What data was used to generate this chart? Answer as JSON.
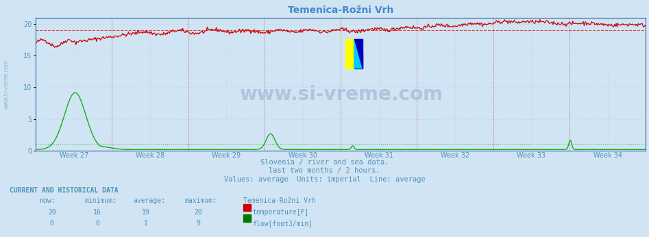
{
  "title": "Temenica-Rožni Vrh",
  "background_color": "#d0e4f4",
  "plot_bg_color": "#d0e4f4",
  "grid_color": "#b8ccdc",
  "text_color": "#5090b8",
  "title_color": "#4488cc",
  "weeks": [
    "Week 27",
    "Week 28",
    "Week 29",
    "Week 30",
    "Week 31",
    "Week 32",
    "Week 33",
    "Week 34"
  ],
  "ylim": [
    0,
    21
  ],
  "yticks": [
    0,
    5,
    10,
    15,
    20
  ],
  "temp_color": "#cc0000",
  "flow_color": "#00aa00",
  "temp_avg_color": "#dd4444",
  "flow_avg_color": "#44bb44",
  "watermark_color": "#a8c0d8",
  "left_label_color": "#8ab0cc",
  "spine_color": "#3060a0",
  "watermark": "www.si-vreme.com",
  "subtitle1": "Slovenia / river and sea data.",
  "subtitle2": "last two months / 2 hours.",
  "subtitle3": "Values: average  Units: imperial  Line: average",
  "table_header": "CURRENT AND HISTORICAL DATA",
  "col_headers": [
    "now:",
    "minimum:",
    "average:",
    "maximum:",
    "Temenica-Rožni Vrh"
  ],
  "temp_row": [
    "20",
    "16",
    "19",
    "20",
    "temperature[F]"
  ],
  "flow_row": [
    "0",
    "0",
    "1",
    "9",
    "flow[foot3/min]"
  ],
  "temp_avg": 19,
  "flow_avg": 1,
  "n_points": 744
}
